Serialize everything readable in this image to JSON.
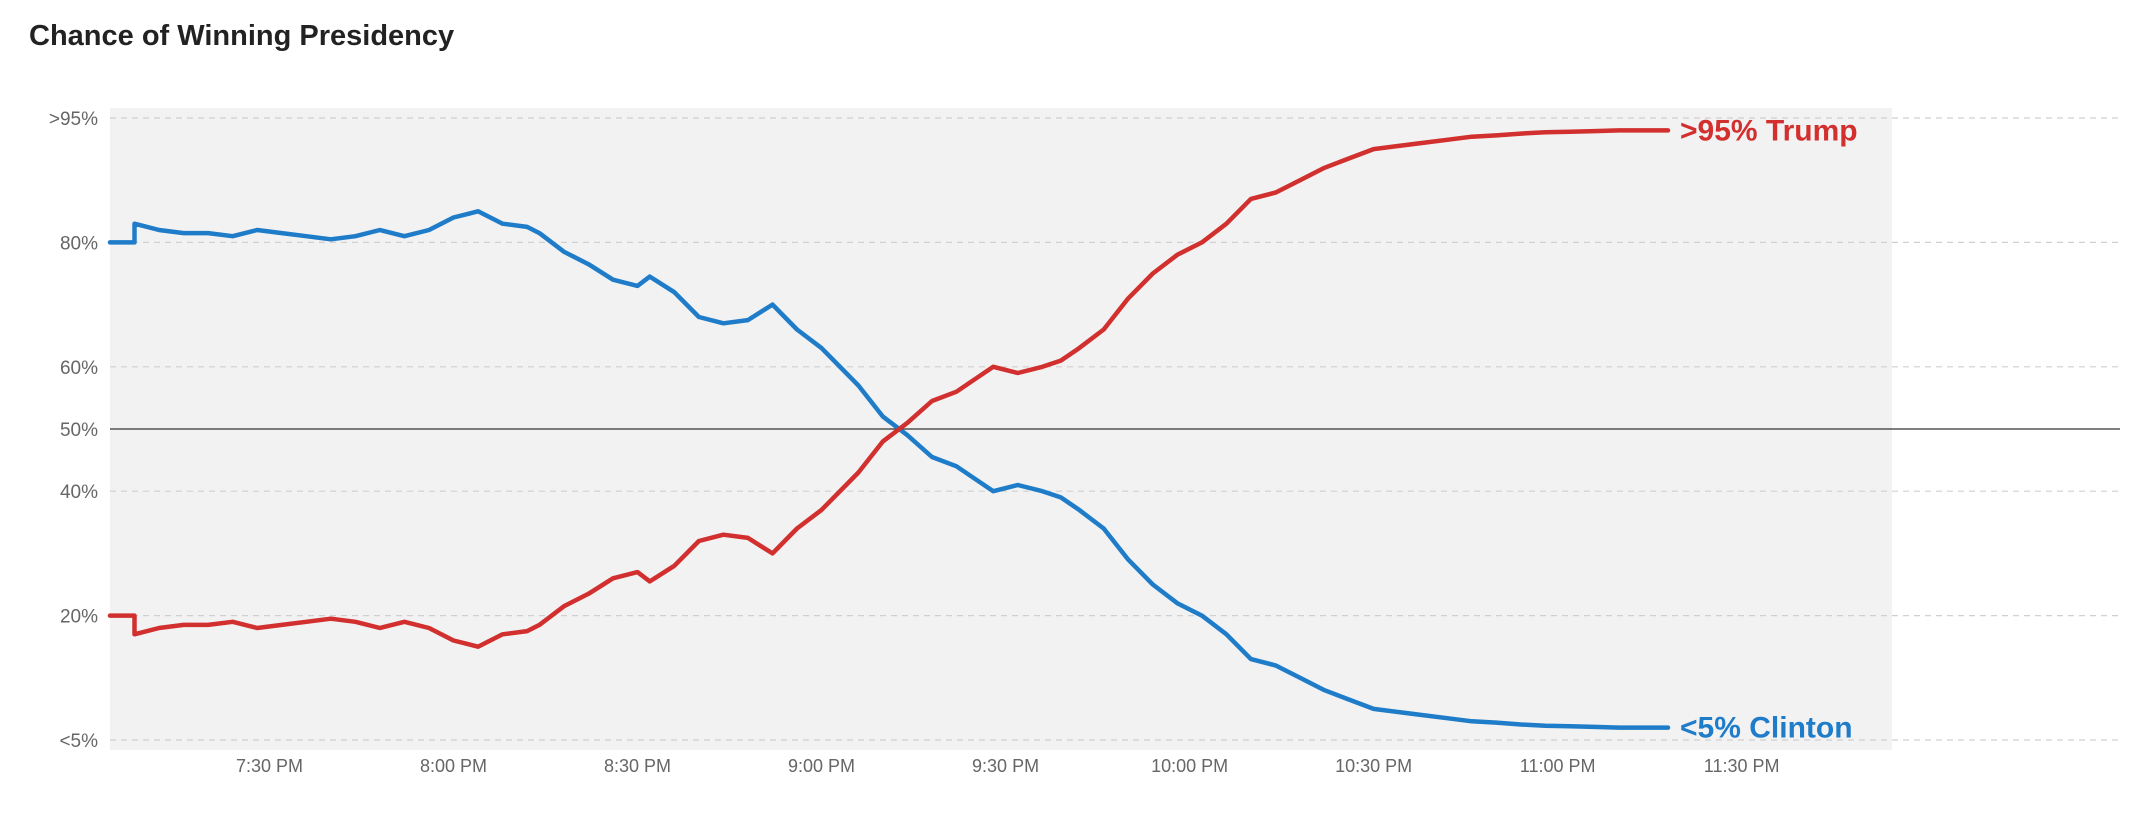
{
  "title": "Chance of Winning Presidency",
  "colors": {
    "trump": "#d22f2f",
    "clinton": "#1f7cc9",
    "plot_bg": "#f2f2f2",
    "grid": "#d0d0d0",
    "midline": "#333333"
  },
  "chart_data": {
    "type": "line",
    "title": "Chance of Winning Presidency",
    "xlabel": "",
    "ylabel": "",
    "xlim": [
      "7:04 PM",
      "11:55 PM"
    ],
    "ylim": [
      0,
      100
    ],
    "grid": true,
    "x_ticks": [
      "7:30 PM",
      "8:00 PM",
      "8:30 PM",
      "9:00 PM",
      "9:30 PM",
      "10:00 PM",
      "10:30 PM",
      "11:00 PM",
      "11:30 PM"
    ],
    "y_ticks": [
      {
        "label": "<5%",
        "value": 0
      },
      {
        "label": "20%",
        "value": 20
      },
      {
        "label": "40%",
        "value": 40
      },
      {
        "label": "50%",
        "value": 50
      },
      {
        "label": "60%",
        "value": 60
      },
      {
        "label": "80%",
        "value": 80
      },
      {
        "label": ">95%",
        "value": 100
      }
    ],
    "end_labels": {
      "trump": ">95% Trump",
      "clinton": "<5% Clinton"
    },
    "x": [
      "7:04 PM",
      "7:08 PM",
      "7:08 PM",
      "7:12 PM",
      "7:16 PM",
      "7:20 PM",
      "7:24 PM",
      "7:28 PM",
      "7:32 PM",
      "7:36 PM",
      "7:40 PM",
      "7:44 PM",
      "7:48 PM",
      "7:52 PM",
      "7:56 PM",
      "8:00 PM",
      "8:02 PM",
      "8:04 PM",
      "8:08 PM",
      "8:12 PM",
      "8:14 PM",
      "8:18 PM",
      "8:22 PM",
      "8:26 PM",
      "8:30 PM",
      "8:32 PM",
      "8:36 PM",
      "8:40 PM",
      "8:44 PM",
      "8:48 PM",
      "8:52 PM",
      "8:54 PM",
      "8:56 PM",
      "9:00 PM",
      "9:04 PM",
      "9:06 PM",
      "9:10 PM",
      "9:14 PM",
      "9:18 PM",
      "9:22 PM",
      "9:25 PM",
      "9:28 PM",
      "9:32 PM",
      "9:36 PM",
      "9:39 PM",
      "9:42 PM",
      "9:46 PM",
      "9:50 PM",
      "9:54 PM",
      "9:58 PM",
      "10:02 PM",
      "10:06 PM",
      "10:10 PM",
      "10:14 PM",
      "10:18 PM",
      "10:22 PM",
      "10:26 PM",
      "10:30 PM",
      "10:34 PM",
      "10:38 PM",
      "10:42 PM",
      "10:46 PM",
      "10:50 PM",
      "10:54 PM",
      "10:58 PM",
      "11:02 PM",
      "11:06 PM",
      "11:10 PM",
      "11:14 PM",
      "11:18 PM"
    ],
    "series": [
      {
        "name": "Clinton",
        "color": "#1f7cc9",
        "values": [
          80,
          80,
          83,
          82,
          81.5,
          81.5,
          81,
          82,
          81.5,
          81,
          80.5,
          81,
          82,
          81,
          82,
          84,
          84.5,
          85,
          83,
          82.5,
          81.5,
          78.5,
          76.5,
          74,
          73,
          74.5,
          72,
          68,
          67,
          67.5,
          70,
          68,
          66,
          63,
          59,
          57,
          52,
          49,
          45.5,
          44,
          42,
          40,
          41,
          40,
          39,
          37,
          34,
          29,
          25,
          22,
          20,
          17,
          13,
          12,
          10,
          8,
          6.5,
          5,
          4.5,
          4,
          3.5,
          3,
          2.8,
          2.5,
          2.3,
          2.2,
          2.1,
          2.0,
          2.0,
          2.0
        ]
      },
      {
        "name": "Trump",
        "color": "#d22f2f",
        "values": [
          20,
          20,
          17,
          18,
          18.5,
          18.5,
          19,
          18,
          18.5,
          19,
          19.5,
          19,
          18,
          19,
          18,
          16,
          15.5,
          15,
          17,
          17.5,
          18.5,
          21.5,
          23.5,
          26,
          27,
          25.5,
          28,
          32,
          33,
          32.5,
          30,
          32,
          34,
          37,
          41,
          43,
          48,
          51,
          54.5,
          56,
          58,
          60,
          59,
          60,
          61,
          63,
          66,
          71,
          75,
          78,
          80,
          83,
          87,
          88,
          90,
          92,
          93.5,
          95,
          95.5,
          96,
          96.5,
          97,
          97.2,
          97.5,
          97.7,
          97.8,
          97.9,
          98,
          98,
          98
        ]
      }
    ]
  }
}
